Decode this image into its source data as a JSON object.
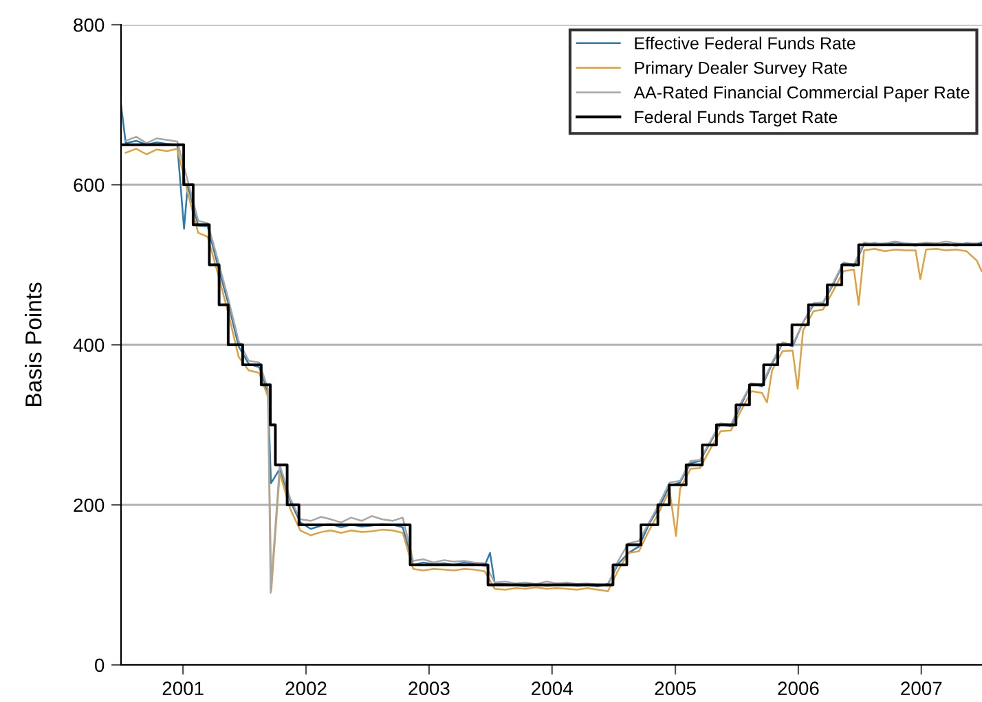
{
  "chart_data": {
    "type": "line",
    "ylabel": "Basis Points",
    "xlim": [
      "2000-07-01",
      "2007-06-30"
    ],
    "xticks": [
      {
        "value": "2001-01-01",
        "label": "2001"
      },
      {
        "value": "2002-01-01",
        "label": "2002"
      },
      {
        "value": "2003-01-01",
        "label": "2003"
      },
      {
        "value": "2004-01-01",
        "label": "2004"
      },
      {
        "value": "2005-01-01",
        "label": "2005"
      },
      {
        "value": "2006-01-01",
        "label": "2006"
      },
      {
        "value": "2007-01-01",
        "label": "2007"
      }
    ],
    "ylim": [
      0,
      800
    ],
    "yticks": [
      0,
      200,
      400,
      600,
      800
    ],
    "grid": "y",
    "legend": "top right",
    "series": [
      {
        "name": "Effective Federal Funds Rate",
        "color": "#2b7bb0",
        "x": [
          "2000-07-01",
          "2000-07-15",
          "2000-08-15",
          "2000-09-15",
          "2000-10-15",
          "2000-11-15",
          "2000-12-15",
          "2001-01-04",
          "2001-01-15",
          "2001-02-15",
          "2001-03-15",
          "2001-04-15",
          "2001-05-15",
          "2001-06-15",
          "2001-07-15",
          "2001-08-15",
          "2001-09-10",
          "2001-09-19",
          "2001-10-15",
          "2001-11-15",
          "2001-12-15",
          "2002-01-15",
          "2002-02-15",
          "2002-03-15",
          "2002-04-15",
          "2002-05-15",
          "2002-06-15",
          "2002-07-15",
          "2002-08-15",
          "2002-09-15",
          "2002-10-15",
          "2002-11-15",
          "2002-12-15",
          "2003-01-15",
          "2003-02-15",
          "2003-03-15",
          "2003-04-15",
          "2003-05-15",
          "2003-06-15",
          "2003-07-01",
          "2003-07-15",
          "2003-08-15",
          "2003-09-15",
          "2003-10-15",
          "2003-11-15",
          "2003-12-15",
          "2004-01-15",
          "2004-02-15",
          "2004-03-15",
          "2004-04-15",
          "2004-05-15",
          "2004-06-15",
          "2004-07-15",
          "2004-08-15",
          "2004-09-15",
          "2004-10-15",
          "2004-11-15",
          "2004-12-15",
          "2005-01-15",
          "2005-02-15",
          "2005-03-15",
          "2005-04-15",
          "2005-05-15",
          "2005-06-15",
          "2005-07-15",
          "2005-08-15",
          "2005-09-15",
          "2005-10-15",
          "2005-11-15",
          "2005-12-15",
          "2006-01-15",
          "2006-02-15",
          "2006-03-15",
          "2006-04-15",
          "2006-05-15",
          "2006-06-15",
          "2006-07-15",
          "2006-08-15",
          "2006-09-15",
          "2006-10-15",
          "2006-11-15",
          "2006-12-15",
          "2007-01-15",
          "2007-02-15",
          "2007-03-15",
          "2007-04-15",
          "2007-05-15",
          "2007-06-15",
          "2007-06-30"
        ],
        "values": [
          700,
          652,
          655,
          650,
          653,
          651,
          650,
          545,
          600,
          549,
          548,
          498,
          452,
          398,
          376,
          372,
          340,
          227,
          245,
          205,
          178,
          170,
          174,
          176,
          172,
          175,
          173,
          174,
          176,
          175,
          172,
          125,
          128,
          126,
          127,
          125,
          128,
          126,
          124,
          140,
          102,
          101,
          100,
          98,
          101,
          99,
          100,
          101,
          99,
          100,
          98,
          101,
          126,
          140,
          148,
          176,
          198,
          224,
          228,
          252,
          255,
          278,
          301,
          298,
          325,
          352,
          348,
          376,
          402,
          398,
          428,
          450,
          452,
          476,
          502,
          498,
          526,
          527,
          525,
          528,
          526,
          524,
          527,
          525,
          526,
          524,
          527,
          526,
          528
        ]
      },
      {
        "name": "Primary Dealer Survey Rate",
        "color": "#e0a040",
        "x": [
          "2000-07-15",
          "2000-08-15",
          "2000-09-15",
          "2000-10-15",
          "2000-11-15",
          "2000-12-15",
          "2001-01-15",
          "2001-02-15",
          "2001-03-15",
          "2001-04-15",
          "2001-05-15",
          "2001-06-15",
          "2001-07-15",
          "2001-08-15",
          "2001-09-10",
          "2001-09-20",
          "2001-10-15",
          "2001-11-15",
          "2001-12-15",
          "2002-01-15",
          "2002-02-15",
          "2002-03-15",
          "2002-04-15",
          "2002-05-15",
          "2002-06-15",
          "2002-07-15",
          "2002-08-15",
          "2002-09-15",
          "2002-10-15",
          "2002-11-15",
          "2002-12-15",
          "2003-01-15",
          "2003-02-15",
          "2003-03-15",
          "2003-04-15",
          "2003-05-15",
          "2003-06-15",
          "2003-07-15",
          "2003-08-15",
          "2003-09-15",
          "2003-10-15",
          "2003-11-15",
          "2003-12-15",
          "2004-01-15",
          "2004-02-15",
          "2004-03-15",
          "2004-04-15",
          "2004-05-15",
          "2004-06-15",
          "2004-07-15",
          "2004-08-15",
          "2004-09-15",
          "2004-10-15",
          "2004-11-15",
          "2004-12-15",
          "2005-01-03",
          "2005-01-15",
          "2005-02-15",
          "2005-03-15",
          "2005-04-15",
          "2005-05-15",
          "2005-06-15",
          "2005-07-15",
          "2005-08-15",
          "2005-09-15",
          "2005-09-30",
          "2005-10-15",
          "2005-11-15",
          "2005-12-15",
          "2005-12-30",
          "2006-01-15",
          "2006-02-15",
          "2006-03-15",
          "2006-04-15",
          "2006-05-15",
          "2006-06-15",
          "2006-06-29",
          "2006-07-15",
          "2006-08-15",
          "2006-09-15",
          "2006-10-15",
          "2006-11-15",
          "2006-12-15",
          "2006-12-29",
          "2007-01-15",
          "2007-02-15",
          "2007-03-15",
          "2007-04-15",
          "2007-05-15",
          "2007-06-15",
          "2007-06-29"
        ],
        "values": [
          640,
          645,
          638,
          644,
          642,
          645,
          590,
          540,
          535,
          488,
          440,
          385,
          368,
          365,
          335,
          93,
          240,
          195,
          168,
          162,
          166,
          168,
          165,
          168,
          166,
          167,
          169,
          168,
          165,
          120,
          118,
          120,
          119,
          118,
          120,
          119,
          117,
          95,
          94,
          96,
          95,
          97,
          95,
          96,
          95,
          94,
          96,
          94,
          92,
          118,
          140,
          142,
          168,
          192,
          218,
          161,
          220,
          245,
          246,
          270,
          292,
          293,
          318,
          342,
          340,
          328,
          368,
          392,
          393,
          345,
          418,
          442,
          444,
          468,
          492,
          494,
          450,
          518,
          520,
          517,
          519,
          518,
          518,
          482,
          519,
          520,
          518,
          519,
          517,
          505,
          492
        ]
      },
      {
        "name": "AA-Rated Financial Commercial Paper Rate",
        "color": "#a6a6a6",
        "x": [
          "2000-07-15",
          "2000-08-15",
          "2000-09-15",
          "2000-10-15",
          "2000-11-15",
          "2000-12-15",
          "2001-01-15",
          "2001-02-15",
          "2001-03-15",
          "2001-04-15",
          "2001-05-15",
          "2001-06-15",
          "2001-07-15",
          "2001-08-15",
          "2001-09-10",
          "2001-09-18",
          "2001-10-15",
          "2001-11-15",
          "2001-12-15",
          "2002-01-15",
          "2002-02-15",
          "2002-03-15",
          "2002-04-15",
          "2002-05-15",
          "2002-06-15",
          "2002-07-15",
          "2002-08-15",
          "2002-09-15",
          "2002-10-15",
          "2002-11-15",
          "2002-12-15",
          "2003-01-15",
          "2003-02-15",
          "2003-03-15",
          "2003-04-15",
          "2003-05-15",
          "2003-06-15",
          "2003-07-15",
          "2003-08-15",
          "2003-09-15",
          "2003-10-15",
          "2003-11-15",
          "2003-12-15",
          "2004-01-15",
          "2004-02-15",
          "2004-03-15",
          "2004-04-15",
          "2004-05-15",
          "2004-06-15",
          "2004-07-15",
          "2004-08-15",
          "2004-09-15",
          "2004-10-15",
          "2004-11-15",
          "2004-12-15",
          "2005-01-15",
          "2005-02-15",
          "2005-03-15",
          "2005-04-15",
          "2005-05-15",
          "2005-06-15",
          "2005-07-15",
          "2005-08-15",
          "2005-09-15",
          "2005-10-15",
          "2005-11-15",
          "2005-12-15",
          "2006-01-15",
          "2006-02-15",
          "2006-03-15",
          "2006-04-15",
          "2006-05-15",
          "2006-06-15",
          "2006-07-15",
          "2006-08-15",
          "2006-09-15",
          "2006-10-15",
          "2006-11-15",
          "2006-12-15",
          "2007-01-15",
          "2007-02-15",
          "2007-03-15",
          "2007-04-15",
          "2007-05-15",
          "2007-06-15"
        ],
        "values": [
          655,
          660,
          652,
          658,
          656,
          654,
          605,
          555,
          552,
          505,
          458,
          405,
          380,
          378,
          345,
          90,
          250,
          208,
          182,
          180,
          185,
          182,
          178,
          184,
          180,
          186,
          182,
          180,
          184,
          130,
          132,
          128,
          131,
          129,
          130,
          128,
          127,
          103,
          104,
          102,
          103,
          101,
          104,
          102,
          103,
          101,
          102,
          100,
          99,
          130,
          152,
          155,
          178,
          202,
          228,
          230,
          255,
          256,
          280,
          302,
          300,
          328,
          352,
          350,
          378,
          403,
          400,
          428,
          452,
          453,
          478,
          503,
          500,
          528,
          526,
          527,
          529,
          527,
          526,
          528,
          527,
          529,
          527,
          526,
          527
        ]
      },
      {
        "name": "Federal Funds Target Rate",
        "color": "#000000",
        "type": "step",
        "x": [
          "2000-07-01",
          "2001-01-03",
          "2001-01-31",
          "2001-03-20",
          "2001-04-18",
          "2001-05-15",
          "2001-06-27",
          "2001-08-21",
          "2001-09-17",
          "2001-10-02",
          "2001-11-06",
          "2001-12-11",
          "2002-11-06",
          "2003-06-25",
          "2004-06-30",
          "2004-08-10",
          "2004-09-21",
          "2004-11-10",
          "2004-12-14",
          "2005-02-02",
          "2005-03-22",
          "2005-05-03",
          "2005-06-30",
          "2005-08-09",
          "2005-09-20",
          "2005-11-01",
          "2005-12-13",
          "2006-01-31",
          "2006-03-28",
          "2006-05-10",
          "2006-06-29",
          "2007-06-30"
        ],
        "values": [
          650,
          600,
          550,
          500,
          450,
          400,
          375,
          350,
          300,
          250,
          200,
          175,
          125,
          100,
          125,
          150,
          175,
          200,
          225,
          250,
          275,
          300,
          325,
          350,
          375,
          400,
          425,
          450,
          475,
          500,
          525,
          525
        ]
      }
    ]
  }
}
